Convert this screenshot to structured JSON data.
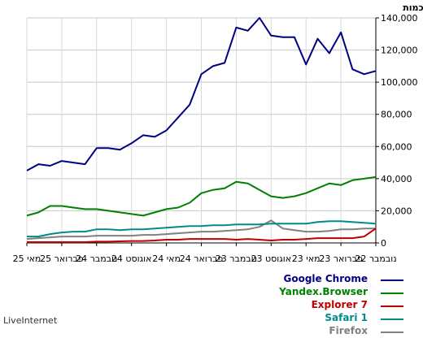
{
  "chart_data": {
    "type": "line",
    "ylabel": "כמות",
    "ylim": [
      0,
      140000
    ],
    "y_ticks": [
      "0",
      "20,000",
      "40,000",
      "60,000",
      "80,000",
      "100,000",
      "120,000",
      "140,000"
    ],
    "x_ticks": [
      "נובמבר 22",
      "פברואר 23",
      "מאי 23",
      "אוגוסט 23",
      "נובמבר 23",
      "פברואר 24",
      "מאי 24",
      "אוגוסט 24",
      "נובמבר 24",
      "פברואר 25",
      "מאי 25"
    ],
    "x_direction": "right-to-left",
    "grid": true,
    "series": [
      {
        "name": "Google Chrome",
        "color": "#000080",
        "values": [
          107000,
          105000,
          108000,
          131000,
          118000,
          127000,
          111000,
          128000,
          128000,
          129000,
          140000,
          132000,
          134000,
          112000,
          110000,
          105000,
          86000,
          78000,
          70000,
          66000,
          67000,
          62000,
          58000,
          59000,
          59000,
          49000,
          50000,
          51000,
          48000,
          49000,
          45000
        ]
      },
      {
        "name": "Yandex.Browser",
        "color": "#008000",
        "values": [
          41000,
          40000,
          39000,
          36000,
          37000,
          34000,
          31000,
          29000,
          28000,
          29000,
          33000,
          37000,
          38000,
          34000,
          33000,
          31000,
          25000,
          22000,
          21000,
          19000,
          17000,
          18000,
          19000,
          20000,
          21000,
          21000,
          22000,
          23000,
          23000,
          19000,
          17000
        ]
      },
      {
        "name": "Explorer 7",
        "color": "#c00000",
        "values": [
          9000,
          4000,
          3000,
          3000,
          3000,
          3000,
          2500,
          2000,
          2000,
          1500,
          2000,
          2500,
          2000,
          2500,
          2500,
          2500,
          2500,
          2000,
          2000,
          1500,
          1200,
          1200,
          1000,
          800,
          800,
          500,
          500,
          500,
          500,
          500,
          500
        ]
      },
      {
        "name": "Safari 1",
        "color": "#008b8b",
        "values": [
          12000,
          12500,
          13000,
          13500,
          13500,
          13000,
          12000,
          12000,
          12000,
          12000,
          11500,
          11500,
          11500,
          11000,
          11000,
          10500,
          10500,
          10000,
          9500,
          9000,
          8500,
          8500,
          8000,
          8500,
          8500,
          7000,
          7000,
          6500,
          5500,
          4000,
          4000
        ]
      },
      {
        "name": "Firefox",
        "color": "#808080",
        "values": [
          9000,
          9000,
          8500,
          8500,
          7500,
          7000,
          7000,
          8000,
          9000,
          14000,
          10000,
          8500,
          8000,
          7500,
          7000,
          7000,
          6500,
          6000,
          5500,
          5000,
          5000,
          4500,
          4500,
          4500,
          4500,
          4000,
          4000,
          4000,
          3500,
          3000,
          2500
        ]
      }
    ]
  },
  "footer": {
    "brand": "LiveInternet"
  }
}
